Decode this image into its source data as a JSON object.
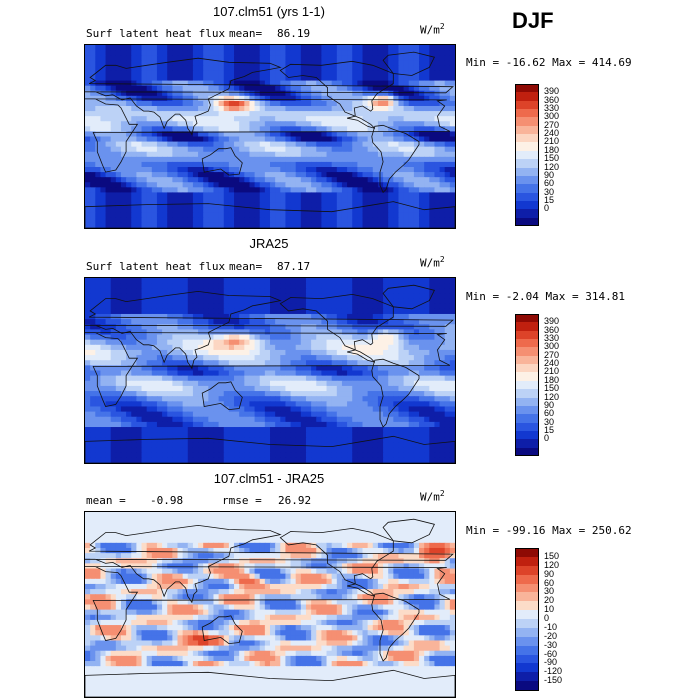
{
  "season": "DJF",
  "colors": {
    "full_scale": [
      "#0a0a80",
      "#0e1ea8",
      "#1238d0",
      "#2a55e0",
      "#4573e8",
      "#6a92ee",
      "#93b3f2",
      "#bcd2f6",
      "#e2ecfa",
      "#fdf1e6",
      "#fcd6c2",
      "#f9b49a",
      "#f58f72",
      "#ee6a4c",
      "#dd4329",
      "#c0200f",
      "#8e0a04"
    ],
    "diff_scale": [
      "#0a0a80",
      "#0e1ea8",
      "#1238d0",
      "#2a55e0",
      "#4573e8",
      "#6a92ee",
      "#93b3f2",
      "#bcd2f6",
      "#e2ecfa",
      "#fcdcc8",
      "#f9b49a",
      "#f58f72",
      "#ee6a4c",
      "#dd4329",
      "#c0200f",
      "#8e0a04"
    ]
  },
  "panels": [
    {
      "title": "107.clm51 (yrs 1-1)",
      "variable": "Surf latent heat flux",
      "stat1_label": "mean=",
      "stat1_value": "86.19",
      "stat2_label": "",
      "stat2_value": "",
      "units_base": "W/m",
      "units_exp": "2",
      "min_label": "Min =",
      "min_value": "-16.62",
      "max_label": "Max =",
      "max_value": "414.69",
      "minmax_text": "Min =  -16.62 Max = 414.69",
      "colorbar_levels": [
        "390",
        "360",
        "330",
        "300",
        "270",
        "240",
        "210",
        "180",
        "150",
        "120",
        "90",
        "60",
        "30",
        "15",
        "0"
      ]
    },
    {
      "title": "JRA25",
      "variable": "Surf latent heat flux",
      "stat1_label": "mean=",
      "stat1_value": "87.17",
      "stat2_label": "",
      "stat2_value": "",
      "units_base": "W/m",
      "units_exp": "2",
      "min_label": "Min =",
      "min_value": "-2.04",
      "max_label": "Max =",
      "max_value": "314.81",
      "minmax_text": "Min =  -2.04 Max = 314.81",
      "colorbar_levels": [
        "390",
        "360",
        "330",
        "300",
        "270",
        "240",
        "210",
        "180",
        "150",
        "120",
        "90",
        "60",
        "30",
        "15",
        "0"
      ]
    },
    {
      "title": "107.clm51 - JRA25",
      "variable": "",
      "stat1_label": "mean =",
      "stat1_value": "-0.98",
      "stat2_label": "rmse =",
      "stat2_value": "26.92",
      "units_base": "W/m",
      "units_exp": "2",
      "min_label": "Min =",
      "min_value": "-99.16",
      "max_label": "Max =",
      "max_value": "250.62",
      "minmax_text": "Min = -99.16 Max = 250.62",
      "colorbar_levels": [
        "150",
        "120",
        "90",
        "60",
        "30",
        "20",
        "10",
        "0",
        "-10",
        "-20",
        "-30",
        "-60",
        "-90",
        "-120",
        "-150"
      ]
    }
  ],
  "chart_data": [
    {
      "type": "heatmap",
      "title": "107.clm51 (yrs 1-1)",
      "subtitle": "Surf latent heat flux",
      "mean": 86.19,
      "min": -16.62,
      "max": 414.69,
      "units": "W/m^2",
      "levels": [
        0,
        15,
        30,
        60,
        90,
        120,
        150,
        180,
        210,
        240,
        270,
        300,
        330,
        360,
        390
      ],
      "grid": "global lat-lon map"
    },
    {
      "type": "heatmap",
      "title": "JRA25",
      "subtitle": "Surf latent heat flux",
      "mean": 87.17,
      "min": -2.04,
      "max": 314.81,
      "units": "W/m^2",
      "levels": [
        0,
        15,
        30,
        60,
        90,
        120,
        150,
        180,
        210,
        240,
        270,
        300,
        330,
        360,
        390
      ],
      "grid": "global lat-lon map"
    },
    {
      "type": "heatmap",
      "title": "107.clm51 - JRA25",
      "mean": -0.98,
      "rmse": 26.92,
      "min": -99.16,
      "max": 250.62,
      "units": "W/m^2",
      "levels": [
        -150,
        -120,
        -90,
        -60,
        -30,
        -20,
        -10,
        0,
        10,
        20,
        30,
        60,
        90,
        120,
        150
      ],
      "grid": "global lat-lon map"
    }
  ]
}
